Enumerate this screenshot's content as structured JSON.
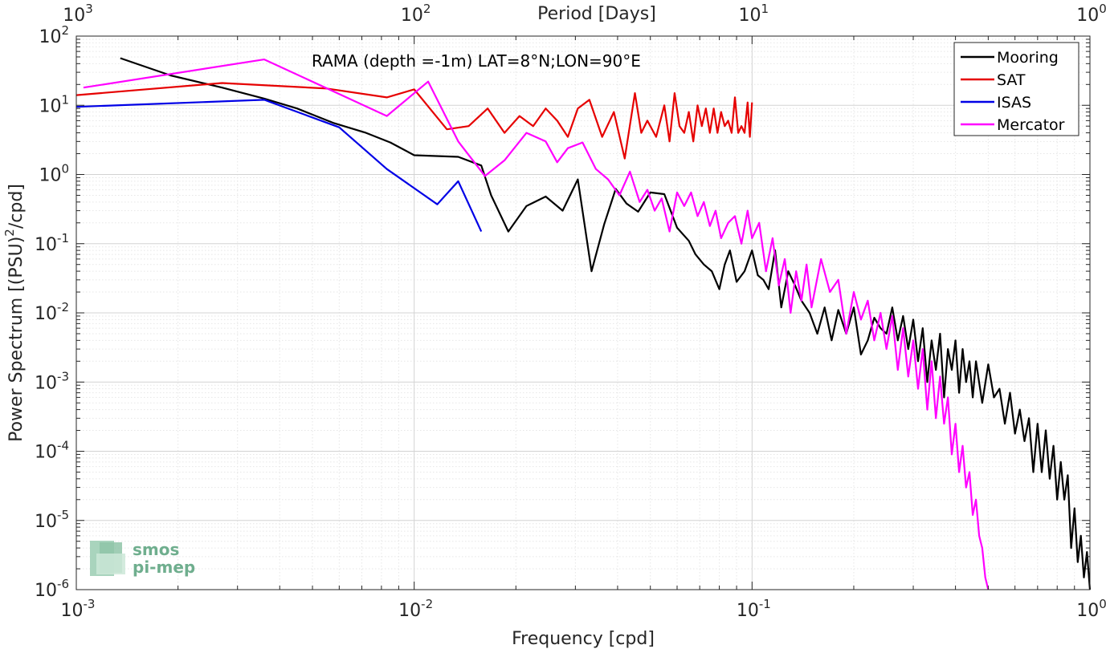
{
  "chart_data": {
    "type": "line",
    "title": "",
    "annotation": "RAMA (depth =-1m) LAT=8°N;LON=90°E",
    "xlabel": "Frequency [cpd]",
    "ylabel": "Power Spectrum [(PSU)²/cpd]",
    "ylabel_parts": {
      "pre": "Power Spectrum [(PSU)",
      "sup": "2",
      "post": "/cpd]"
    },
    "top_xlabel": "Period [Days]",
    "xscale": "log",
    "yscale": "log",
    "xlim": [
      0.001,
      1
    ],
    "ylim": [
      1e-06,
      100
    ],
    "grid": true,
    "minor_grid": true,
    "legend_position": "top-right",
    "x_ticks": [
      {
        "base": "10",
        "exp": "-3"
      },
      {
        "base": "10",
        "exp": "-2"
      },
      {
        "base": "10",
        "exp": "-1"
      },
      {
        "base": "10",
        "exp": "0"
      }
    ],
    "top_ticks": [
      {
        "base": "10",
        "exp": "3"
      },
      {
        "base": "10",
        "exp": "2"
      },
      {
        "base": "10",
        "exp": "1"
      },
      {
        "base": "10",
        "exp": "0"
      }
    ],
    "y_ticks": [
      {
        "base": "10",
        "exp": "2"
      },
      {
        "base": "10",
        "exp": "1"
      },
      {
        "base": "10",
        "exp": "0"
      },
      {
        "base": "10",
        "exp": "-1"
      },
      {
        "base": "10",
        "exp": "-2"
      },
      {
        "base": "10",
        "exp": "-3"
      },
      {
        "base": "10",
        "exp": "-4"
      },
      {
        "base": "10",
        "exp": "-5"
      },
      {
        "base": "10",
        "exp": "-6"
      }
    ],
    "series": [
      {
        "name": "Mooring",
        "color": "#000000",
        "x": [
          0.00135,
          0.0019,
          0.0027,
          0.0036,
          0.0045,
          0.0058,
          0.0072,
          0.0085,
          0.01,
          0.0135,
          0.0158,
          0.0169,
          0.019,
          0.0215,
          0.0245,
          0.0275,
          0.0305,
          0.0335,
          0.0365,
          0.0395,
          0.0425,
          0.046,
          0.05,
          0.055,
          0.06,
          0.065,
          0.068,
          0.072,
          0.076,
          0.08,
          0.083,
          0.086,
          0.09,
          0.095,
          0.1,
          0.104,
          0.108,
          0.112,
          0.117,
          0.122,
          0.128,
          0.134,
          0.14,
          0.148,
          0.156,
          0.164,
          0.172,
          0.18,
          0.19,
          0.2,
          0.21,
          0.22,
          0.23,
          0.24,
          0.25,
          0.26,
          0.27,
          0.28,
          0.29,
          0.3,
          0.31,
          0.32,
          0.33,
          0.34,
          0.35,
          0.36,
          0.37,
          0.38,
          0.39,
          0.4,
          0.41,
          0.42,
          0.43,
          0.44,
          0.45,
          0.46,
          0.48,
          0.5,
          0.52,
          0.54,
          0.56,
          0.58,
          0.6,
          0.62,
          0.64,
          0.66,
          0.68,
          0.7,
          0.72,
          0.74,
          0.76,
          0.78,
          0.8,
          0.82,
          0.84,
          0.86,
          0.88,
          0.9,
          0.92,
          0.94,
          0.96,
          0.98,
          1.0
        ],
        "y": [
          48,
          27,
          18,
          12.5,
          9,
          5.5,
          4,
          2.9,
          1.9,
          1.8,
          1.35,
          0.5,
          0.15,
          0.35,
          0.48,
          0.3,
          0.85,
          0.04,
          0.19,
          0.62,
          0.38,
          0.29,
          0.55,
          0.52,
          0.17,
          0.11,
          0.07,
          0.05,
          0.04,
          0.022,
          0.05,
          0.08,
          0.028,
          0.04,
          0.08,
          0.035,
          0.03,
          0.022,
          0.08,
          0.012,
          0.04,
          0.025,
          0.015,
          0.01,
          0.005,
          0.012,
          0.004,
          0.011,
          0.005,
          0.012,
          0.0025,
          0.004,
          0.0085,
          0.006,
          0.005,
          0.012,
          0.004,
          0.009,
          0.003,
          0.008,
          0.002,
          0.006,
          0.001,
          0.004,
          0.0015,
          0.005,
          0.0006,
          0.003,
          0.0015,
          0.004,
          0.0007,
          0.003,
          0.001,
          0.002,
          0.0006,
          0.002,
          0.0005,
          0.0018,
          0.0006,
          0.0008,
          0.00025,
          0.0007,
          0.00018,
          0.0004,
          0.00014,
          0.0003,
          5e-05,
          0.00025,
          5e-05,
          0.0002,
          4e-05,
          0.00012,
          2e-05,
          7e-05,
          2e-05,
          4.5e-05,
          4e-06,
          1.5e-05,
          2.5e-06,
          6e-06,
          1.5e-06,
          3.5e-06,
          1e-06
        ]
      },
      {
        "name": "SAT",
        "color": "#e60000",
        "x": [
          0.001,
          0.0027,
          0.0055,
          0.0083,
          0.01,
          0.0125,
          0.0145,
          0.0165,
          0.0185,
          0.0205,
          0.0225,
          0.0245,
          0.0265,
          0.0285,
          0.0305,
          0.033,
          0.036,
          0.039,
          0.042,
          0.045,
          0.047,
          0.049,
          0.052,
          0.055,
          0.057,
          0.059,
          0.061,
          0.063,
          0.065,
          0.067,
          0.069,
          0.071,
          0.073,
          0.075,
          0.077,
          0.079,
          0.081,
          0.083,
          0.085,
          0.087,
          0.089,
          0.091,
          0.093,
          0.095,
          0.097,
          0.0985,
          0.1
        ],
        "y": [
          14,
          21,
          17.5,
          13,
          17,
          4.5,
          5,
          9,
          4,
          7,
          5,
          9,
          6,
          3.5,
          9,
          12,
          3.5,
          8,
          1.7,
          15,
          4,
          6,
          3.5,
          10,
          3,
          15,
          5,
          4,
          8,
          3,
          10,
          5,
          9,
          4,
          9,
          4,
          8,
          5,
          6,
          4,
          13,
          4,
          5,
          4,
          11,
          3.5,
          11
        ]
      },
      {
        "name": "ISAS",
        "color": "#0000e6",
        "x": [
          0.001,
          0.0036,
          0.006,
          0.0083,
          0.0117,
          0.0135,
          0.0158
        ],
        "y": [
          9.5,
          12,
          4.8,
          1.2,
          0.37,
          0.8,
          0.15
        ]
      },
      {
        "name": "Mercator",
        "color": "#ff00ff",
        "x": [
          0.00105,
          0.0036,
          0.0083,
          0.011,
          0.0135,
          0.0162,
          0.0185,
          0.0215,
          0.0245,
          0.0265,
          0.0285,
          0.0315,
          0.0345,
          0.0375,
          0.0405,
          0.0435,
          0.0465,
          0.049,
          0.0515,
          0.054,
          0.057,
          0.06,
          0.063,
          0.066,
          0.069,
          0.072,
          0.075,
          0.078,
          0.081,
          0.085,
          0.089,
          0.093,
          0.097,
          0.1,
          0.105,
          0.11,
          0.115,
          0.12,
          0.125,
          0.13,
          0.135,
          0.14,
          0.145,
          0.15,
          0.16,
          0.17,
          0.18,
          0.19,
          0.2,
          0.21,
          0.22,
          0.23,
          0.24,
          0.25,
          0.26,
          0.27,
          0.28,
          0.29,
          0.3,
          0.31,
          0.32,
          0.33,
          0.34,
          0.35,
          0.36,
          0.37,
          0.38,
          0.39,
          0.4,
          0.41,
          0.42,
          0.43,
          0.44,
          0.45,
          0.46,
          0.47,
          0.48,
          0.49,
          0.5
        ],
        "y": [
          18,
          46,
          7,
          22,
          3,
          0.95,
          1.6,
          4,
          3,
          1.5,
          2.4,
          2.9,
          1.2,
          0.85,
          0.5,
          1.1,
          0.4,
          0.6,
          0.3,
          0.45,
          0.15,
          0.55,
          0.35,
          0.55,
          0.25,
          0.4,
          0.18,
          0.3,
          0.12,
          0.2,
          0.25,
          0.1,
          0.3,
          0.12,
          0.2,
          0.04,
          0.12,
          0.025,
          0.06,
          0.01,
          0.04,
          0.015,
          0.05,
          0.012,
          0.06,
          0.02,
          0.03,
          0.005,
          0.02,
          0.008,
          0.015,
          0.004,
          0.01,
          0.003,
          0.009,
          0.0015,
          0.006,
          0.0012,
          0.004,
          0.0008,
          0.003,
          0.0004,
          0.002,
          0.0003,
          0.0012,
          0.00025,
          0.0006,
          9e-05,
          0.00025,
          5e-05,
          0.00012,
          3e-05,
          5e-05,
          1.2e-05,
          2e-05,
          6e-06,
          4e-06,
          1.5e-06,
          1e-06
        ]
      }
    ]
  },
  "watermark": {
    "line1": "smos",
    "line2": "pi-mep"
  }
}
